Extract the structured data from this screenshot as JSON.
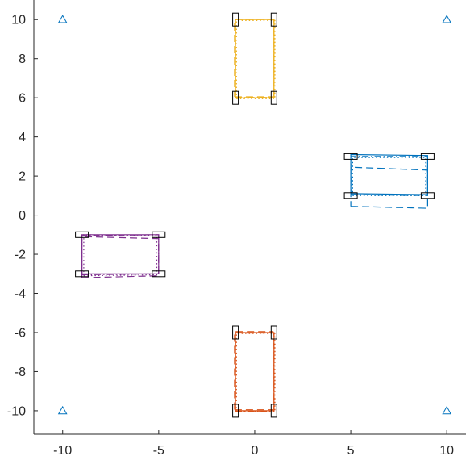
{
  "chart_data": {
    "type": "line",
    "title": "",
    "xlabel": "",
    "ylabel": "",
    "xlim": [
      -11.5,
      11
    ],
    "ylim": [
      -11.2,
      11
    ],
    "grid": false,
    "legend": "none",
    "x_ticks": [
      -10,
      -5,
      0,
      5,
      10
    ],
    "x_tick_labels": [
      "-10",
      "-5",
      "0",
      "5",
      "10"
    ],
    "y_ticks": [
      10,
      8,
      6,
      4,
      2,
      0,
      -2,
      -4,
      -6,
      -8,
      -10
    ],
    "y_tick_labels": [
      "10",
      "8",
      "6",
      "4",
      "2",
      "0",
      "-2",
      "-4",
      "-6",
      "-8",
      "-10"
    ],
    "colors": {
      "axis": "#262626",
      "markers": "#0072BD",
      "box_outline": "#000000"
    },
    "anchors": {
      "marker": "triangle",
      "color": "#0072BD",
      "points": [
        [
          -10,
          10
        ],
        [
          10,
          10
        ],
        [
          -10,
          -10
        ],
        [
          10,
          -10
        ]
      ]
    },
    "series": [
      {
        "color": "#0072BD",
        "corners": [
          [
            5,
            1
          ],
          [
            9,
            1
          ],
          [
            9,
            3
          ],
          [
            5,
            3
          ]
        ],
        "trajectories": [
          {
            "style": "solid",
            "points": [
              [
                5,
                1.1
              ],
              [
                9,
                1.05
              ],
              [
                9,
                3.05
              ],
              [
                5,
                3.1
              ],
              [
                5,
                1.1
              ]
            ]
          },
          {
            "style": "dashed",
            "points": [
              [
                5,
                0.45
              ],
              [
                9,
                0.35
              ],
              [
                9,
                2.3
              ],
              [
                5,
                2.45
              ],
              [
                5,
                0.45
              ]
            ]
          },
          {
            "style": "dotted",
            "points": [
              [
                5.1,
                1.0
              ],
              [
                8.9,
                1.0
              ],
              [
                8.9,
                2.95
              ],
              [
                5.1,
                2.95
              ],
              [
                5.1,
                1.0
              ]
            ]
          },
          {
            "style": "dashdot",
            "points": [
              [
                5,
                1.05
              ],
              [
                9,
                1.0
              ],
              [
                9,
                3.0
              ],
              [
                5,
                3.0
              ],
              [
                5,
                1.05
              ]
            ]
          }
        ]
      },
      {
        "color": "#D95319",
        "corners": [
          [
            -1,
            -10
          ],
          [
            1,
            -10
          ],
          [
            1,
            -6
          ],
          [
            -1,
            -6
          ]
        ],
        "trajectories": [
          {
            "style": "solid",
            "points": [
              [
                -1,
                -10
              ],
              [
                1,
                -10
              ],
              [
                1,
                -6
              ],
              [
                -1,
                -6
              ],
              [
                -1,
                -10
              ]
            ]
          },
          {
            "style": "dashed",
            "points": [
              [
                -1.05,
                -9.95
              ],
              [
                0.95,
                -9.95
              ],
              [
                0.95,
                -5.95
              ],
              [
                -1.05,
                -5.95
              ],
              [
                -1.05,
                -9.95
              ]
            ]
          },
          {
            "style": "dotted",
            "points": [
              [
                -0.95,
                -10.05
              ],
              [
                1.05,
                -10.05
              ],
              [
                1.05,
                -6.05
              ],
              [
                -0.95,
                -6.05
              ],
              [
                -0.95,
                -10.05
              ]
            ]
          },
          {
            "style": "dashdot",
            "points": [
              [
                -1,
                -10.02
              ],
              [
                1,
                -10.02
              ],
              [
                1,
                -6.02
              ],
              [
                -1,
                -6.02
              ],
              [
                -1,
                -10.02
              ]
            ]
          }
        ]
      },
      {
        "color": "#EDB120",
        "corners": [
          [
            -1,
            6
          ],
          [
            1,
            6
          ],
          [
            1,
            10
          ],
          [
            -1,
            10
          ]
        ],
        "trajectories": [
          {
            "style": "solid",
            "points": [
              [
                -1,
                6
              ],
              [
                1,
                6
              ],
              [
                1,
                10
              ],
              [
                -1,
                10
              ],
              [
                -1,
                6
              ]
            ]
          },
          {
            "style": "dashed",
            "points": [
              [
                -1.05,
                6.05
              ],
              [
                0.95,
                6.05
              ],
              [
                0.95,
                10.0
              ],
              [
                -1.05,
                10.0
              ],
              [
                -1.05,
                6.05
              ]
            ]
          },
          {
            "style": "dotted",
            "points": [
              [
                -0.95,
                5.95
              ],
              [
                1.05,
                5.95
              ],
              [
                1.05,
                9.95
              ],
              [
                -0.95,
                9.95
              ],
              [
                -0.95,
                5.95
              ]
            ]
          },
          {
            "style": "dashdot",
            "points": [
              [
                -1,
                6.02
              ],
              [
                1,
                6.02
              ],
              [
                1,
                10.02
              ],
              [
                -1,
                10.02
              ],
              [
                -1,
                6.02
              ]
            ]
          }
        ]
      },
      {
        "color": "#7E2F8E",
        "corners": [
          [
            -9,
            -3
          ],
          [
            -5,
            -3
          ],
          [
            -5,
            -1
          ],
          [
            -9,
            -1
          ]
        ],
        "trajectories": [
          {
            "style": "solid",
            "points": [
              [
                -9,
                -3
              ],
              [
                -5,
                -3
              ],
              [
                -5,
                -1
              ],
              [
                -9,
                -1
              ],
              [
                -9,
                -3
              ]
            ]
          },
          {
            "style": "dashed",
            "points": [
              [
                -9,
                -3.2
              ],
              [
                -5,
                -3.1
              ],
              [
                -5,
                -1.2
              ],
              [
                -9,
                -1.1
              ],
              [
                -9,
                -3.2
              ]
            ]
          },
          {
            "style": "dotted",
            "points": [
              [
                -8.9,
                -3.1
              ],
              [
                -5.1,
                -3.05
              ],
              [
                -5.1,
                -1.05
              ],
              [
                -8.9,
                -1.0
              ],
              [
                -8.9,
                -3.1
              ]
            ]
          },
          {
            "style": "dashdot",
            "points": [
              [
                -9,
                -3.05
              ],
              [
                -5,
                -3.0
              ],
              [
                -5,
                -1.0
              ],
              [
                -9,
                -1.05
              ],
              [
                -9,
                -3.05
              ]
            ]
          }
        ]
      }
    ]
  }
}
